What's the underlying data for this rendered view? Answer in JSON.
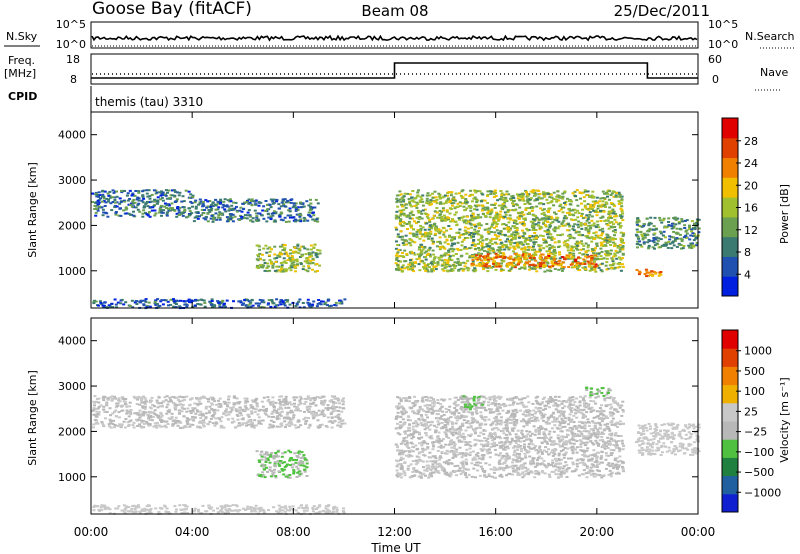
{
  "header": {
    "station": "Goose Bay (fitACF)",
    "beam": "Beam 08",
    "date": "25/Dec/2011"
  },
  "summary_panel": {
    "left_label": "N.Sky",
    "right_label": "N.Search",
    "left_ticks": [
      "10^5",
      "10^0"
    ],
    "right_ticks": [
      "10^5",
      "10^0"
    ]
  },
  "freq_panel": {
    "left_label_top": "Freq.",
    "left_label_unit": "[MHz]",
    "right_label": "Nave",
    "left_ticks": [
      "18",
      "8"
    ],
    "right_ticks": [
      "60",
      "0"
    ]
  },
  "cpid": {
    "label": "CPID",
    "program": "themis (tau) 3310"
  },
  "axes": {
    "x_title": "Time UT",
    "x_ticks": [
      "00:00",
      "04:00",
      "08:00",
      "12:00",
      "16:00",
      "20:00",
      "00:00"
    ],
    "y_title": "Slant Range [km]",
    "y_ticks": [
      "4000",
      "3000",
      "2000",
      "1000"
    ]
  },
  "power_colorbar": {
    "title": "Power [dB]",
    "ticks": [
      "28",
      "24",
      "20",
      "16",
      "12",
      "8",
      "4"
    ],
    "colors": [
      "#0020e0",
      "#2050b0",
      "#3a7a70",
      "#6aa050",
      "#a0c030",
      "#f0c000",
      "#f08000",
      "#e04000",
      "#e00000"
    ]
  },
  "velocity_colorbar": {
    "title": "Velocity [m s⁻¹]",
    "ticks": [
      "1000",
      "500",
      "100",
      "25",
      "−25",
      "−100",
      "−500",
      "−1000"
    ],
    "colors": [
      "#1020d0",
      "#2060a0",
      "#208040",
      "#50c040",
      "#b8b8b8",
      "#c8c8c8",
      "#f0b000",
      "#f08000",
      "#e04000",
      "#e00000"
    ]
  },
  "chart_data": [
    {
      "type": "line",
      "title": "",
      "series": [
        {
          "name": "N.Sky",
          "x": [
            "00:00",
            "04:00",
            "08:00",
            "12:00",
            "16:00",
            "20:00",
            "24:00"
          ],
          "values": [
            30,
            30,
            30,
            30,
            30,
            30,
            30
          ]
        }
      ],
      "ylim_log": [
        0,
        5
      ]
    },
    {
      "type": "line",
      "series": [
        {
          "name": "Freq",
          "x": [
            "00:00",
            "12:00",
            "12:00",
            "22:00",
            "22:00",
            "24:00"
          ],
          "values": [
            10,
            10,
            15,
            15,
            10,
            10
          ]
        }
      ],
      "ylim": [
        8,
        18
      ]
    },
    {
      "type": "heatmap",
      "title": "Power [dB]",
      "xlabel": "Time UT",
      "ylabel": "Slant Range [km]",
      "xlim_hours": [
        0,
        24
      ],
      "ylim": [
        180,
        4500
      ],
      "colorbar_range": [
        0,
        30
      ],
      "regions": [
        {
          "t": [
            0.0,
            4.0
          ],
          "range": [
            2200,
            2800
          ],
          "value": 7
        },
        {
          "t": [
            4.0,
            9.0
          ],
          "range": [
            2100,
            2600
          ],
          "value": 7
        },
        {
          "t": [
            6.5,
            9.0
          ],
          "range": [
            1000,
            1600
          ],
          "value": 14
        },
        {
          "t": [
            12.0,
            21.0
          ],
          "range": [
            1000,
            2800
          ],
          "value": 14
        },
        {
          "t": [
            15.0,
            20.0
          ],
          "range": [
            1100,
            1400
          ],
          "value": 22
        },
        {
          "t": [
            21.5,
            24.0
          ],
          "range": [
            1500,
            2200
          ],
          "value": 10
        },
        {
          "t": [
            21.5,
            22.5
          ],
          "range": [
            900,
            1100
          ],
          "value": 22
        },
        {
          "t": [
            0.0,
            10.0
          ],
          "range": [
            200,
            400
          ],
          "value": 6
        }
      ]
    },
    {
      "type": "heatmap",
      "title": "Velocity [m s-1]",
      "xlabel": "Time UT",
      "ylabel": "Slant Range [km]",
      "xlim_hours": [
        0,
        24
      ],
      "ylim": [
        180,
        4500
      ],
      "colorbar_range": [
        -1000,
        1000
      ],
      "regions": [
        {
          "t": [
            0.0,
            10.0
          ],
          "range": [
            2100,
            2800
          ],
          "value": 0
        },
        {
          "t": [
            6.5,
            8.5
          ],
          "range": [
            1000,
            1600
          ],
          "value": -200
        },
        {
          "t": [
            12.0,
            21.0
          ],
          "range": [
            1000,
            2800
          ],
          "value": 0
        },
        {
          "t": [
            14.5,
            15.5
          ],
          "range": [
            2500,
            2800
          ],
          "value": -200
        },
        {
          "t": [
            19.5,
            20.5
          ],
          "range": [
            2800,
            3000
          ],
          "value": -200
        },
        {
          "t": [
            21.5,
            24.0
          ],
          "range": [
            1500,
            2200
          ],
          "value": 80
        },
        {
          "t": [
            0.0,
            10.0
          ],
          "range": [
            200,
            400
          ],
          "value": 40
        }
      ]
    }
  ]
}
